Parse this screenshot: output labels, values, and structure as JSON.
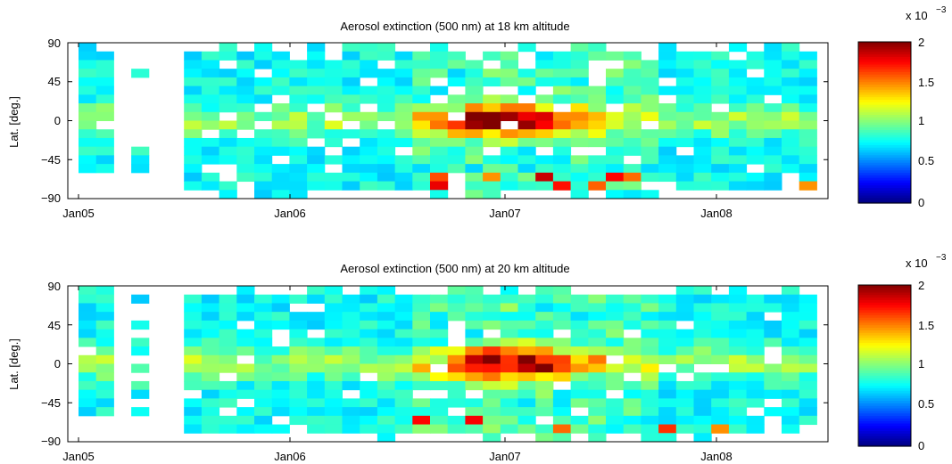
{
  "chart_data": [
    {
      "type": "heatmap",
      "title": "Aerosol extinction (500 nm) at 18 km altitude",
      "ylabel": "Lat. [deg.]",
      "xlabel": "",
      "x_ticks": [
        "Jan05",
        "Jan06",
        "Jan07",
        "Jan08"
      ],
      "y_ticks": [
        "90",
        "45",
        "0",
        "−45",
        "−90"
      ],
      "ylim": [
        -90,
        90
      ],
      "x_range": [
        "2004-12",
        "2008-06"
      ],
      "grid": "off",
      "colorbar": {
        "ticks": [
          "0",
          "0.5",
          "1",
          "1.5",
          "2"
        ],
        "range": [
          0,
          0.002
        ],
        "multiplier": "x 10",
        "exponent": "−3",
        "colormap": "jet"
      },
      "cells": "2D grid of monthly (~37 columns) by 10° latitude bands; values 0–2e-3, mostly 0.4–1.0e-3 with tropical enhancement 1.5–2.0e-3 near late 2006"
    },
    {
      "type": "heatmap",
      "title": "Aerosol extinction (500 nm) at 20 km altitude",
      "ylabel": "Lat. [deg.]",
      "xlabel": "",
      "x_ticks": [
        "Jan05",
        "Jan06",
        "Jan07",
        "Jan08"
      ],
      "y_ticks": [
        "90",
        "45",
        "0",
        "−45",
        "−90"
      ],
      "ylim": [
        -90,
        90
      ],
      "x_range": [
        "2004-12",
        "2008-06"
      ],
      "grid": "off",
      "colorbar": {
        "ticks": [
          "0",
          "0.5",
          "1",
          "1.5",
          "2"
        ],
        "range": [
          0,
          0.002
        ],
        "multiplier": "x 10",
        "exponent": "−3",
        "colormap": "jet"
      },
      "cells": "2D grid of monthly (~37 columns) by 10° latitude bands; values 0–2e-3, mostly 0.3–0.8e-3 with tropical enhancement up to 2.0e-3 near late 2006"
    }
  ]
}
